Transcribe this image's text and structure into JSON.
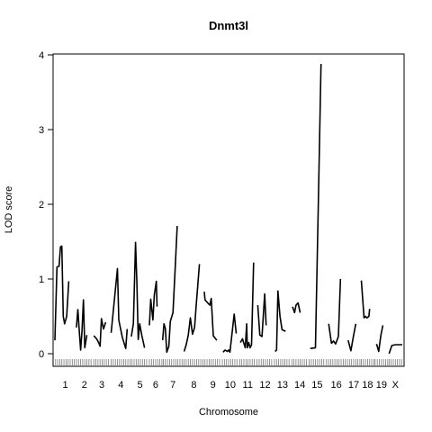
{
  "chart_data": {
    "type": "line",
    "title": "Dnmt3l",
    "xlabel": "Chromosome",
    "ylabel": "LOD score",
    "ylim": [
      0,
      4
    ],
    "yticks": [
      0,
      1,
      2,
      3,
      4
    ],
    "grid": false,
    "line_color": "#000000",
    "chromosomes": [
      {
        "label": "1",
        "span": [
          0.0,
          0.06
        ],
        "markers": [
          0.002,
          0.008,
          0.014,
          0.02,
          0.026,
          0.032,
          0.038,
          0.044,
          0.05,
          0.056
        ],
        "points": [
          [
            0.0,
            0.18
          ],
          [
            0.006,
            1.16
          ],
          [
            0.012,
            1.17
          ],
          [
            0.016,
            1.43
          ],
          [
            0.02,
            1.44
          ],
          [
            0.024,
            0.5
          ],
          [
            0.028,
            0.4
          ],
          [
            0.034,
            0.5
          ],
          [
            0.04,
            0.97
          ]
        ]
      },
      {
        "label": "2",
        "span": [
          0.06,
          0.11
        ],
        "markers": [
          0.062,
          0.068,
          0.074,
          0.08,
          0.086,
          0.092,
          0.098,
          0.104
        ],
        "points": [
          [
            0.062,
            0.35
          ],
          [
            0.066,
            0.59
          ],
          [
            0.07,
            0.32
          ],
          [
            0.074,
            0.05
          ],
          [
            0.078,
            0.3
          ],
          [
            0.082,
            0.72
          ],
          [
            0.086,
            0.08
          ],
          [
            0.092,
            0.25
          ]
        ]
      },
      {
        "label": "3",
        "span": [
          0.11,
          0.16
        ],
        "markers": [
          0.112,
          0.118,
          0.124,
          0.13,
          0.136,
          0.142,
          0.148,
          0.154
        ],
        "points": [
          [
            0.112,
            0.24
          ],
          [
            0.12,
            0.2
          ],
          [
            0.126,
            0.15
          ],
          [
            0.13,
            0.1
          ],
          [
            0.134,
            0.47
          ],
          [
            0.14,
            0.33
          ],
          [
            0.146,
            0.42
          ]
        ]
      },
      {
        "label": "4",
        "span": [
          0.16,
          0.22
        ],
        "markers": [
          0.162,
          0.168,
          0.174,
          0.18,
          0.186,
          0.192,
          0.198,
          0.204,
          0.21,
          0.216
        ],
        "points": [
          [
            0.162,
            0.28
          ],
          [
            0.18,
            1.14
          ],
          [
            0.184,
            0.45
          ],
          [
            0.194,
            0.22
          ],
          [
            0.204,
            0.07
          ],
          [
            0.208,
            0.33
          ]
        ]
      },
      {
        "label": "5",
        "span": [
          0.22,
          0.27
        ],
        "markers": [
          0.222,
          0.228,
          0.234,
          0.24,
          0.246,
          0.252,
          0.258,
          0.264
        ],
        "points": [
          [
            0.22,
            0.23
          ],
          [
            0.226,
            0.4
          ],
          [
            0.232,
            1.49
          ],
          [
            0.236,
            0.95
          ],
          [
            0.24,
            0.19
          ],
          [
            0.244,
            0.4
          ],
          [
            0.25,
            0.25
          ],
          [
            0.258,
            0.08
          ]
        ]
      },
      {
        "label": "6",
        "span": [
          0.27,
          0.31
        ],
        "markers": [
          0.272,
          0.278,
          0.284,
          0.29,
          0.296,
          0.302,
          0.308
        ],
        "points": [
          [
            0.272,
            0.38
          ],
          [
            0.276,
            0.73
          ],
          [
            0.282,
            0.45
          ],
          [
            0.286,
            0.78
          ],
          [
            0.292,
            0.97
          ],
          [
            0.294,
            0.63
          ]
        ]
      },
      {
        "label": "7",
        "span": [
          0.31,
          0.37
        ],
        "markers": [
          0.312,
          0.318,
          0.324,
          0.33,
          0.336,
          0.342,
          0.348,
          0.354,
          0.36,
          0.366
        ],
        "points": [
          [
            0.31,
            0.18
          ],
          [
            0.314,
            0.4
          ],
          [
            0.318,
            0.34
          ],
          [
            0.322,
            0.02
          ],
          [
            0.328,
            0.1
          ],
          [
            0.332,
            0.43
          ],
          [
            0.34,
            0.55
          ],
          [
            0.346,
            1.13
          ],
          [
            0.352,
            1.71
          ]
        ]
      },
      {
        "label": "8",
        "span": [
          0.37,
          0.43
        ],
        "markers": [
          0.372,
          0.378,
          0.384,
          0.39,
          0.396,
          0.402,
          0.408,
          0.414,
          0.42,
          0.426
        ],
        "points": [
          [
            0.372,
            0.03
          ],
          [
            0.378,
            0.12
          ],
          [
            0.384,
            0.25
          ],
          [
            0.39,
            0.48
          ],
          [
            0.396,
            0.26
          ],
          [
            0.402,
            0.35
          ],
          [
            0.406,
            0.6
          ],
          [
            0.416,
            1.2
          ]
        ]
      },
      {
        "label": "9",
        "span": [
          0.43,
          0.48
        ],
        "markers": [
          0.432,
          0.438,
          0.444,
          0.45,
          0.456,
          0.462,
          0.468,
          0.474
        ],
        "points": [
          [
            0.43,
            0.83
          ],
          [
            0.432,
            0.72
          ],
          [
            0.44,
            0.68
          ],
          [
            0.446,
            0.65
          ],
          [
            0.45,
            0.74
          ],
          [
            0.456,
            0.24
          ],
          [
            0.466,
            0.18
          ]
        ]
      },
      {
        "label": "10",
        "span": [
          0.48,
          0.53
        ],
        "markers": [
          0.482,
          0.488,
          0.494,
          0.5,
          0.506,
          0.512,
          0.518,
          0.524
        ],
        "points": [
          [
            0.484,
            0.02
          ],
          [
            0.49,
            0.05
          ],
          [
            0.496,
            0.03
          ],
          [
            0.5,
            0.05
          ],
          [
            0.504,
            0.02
          ],
          [
            0.516,
            0.53
          ],
          [
            0.522,
            0.27
          ]
        ]
      },
      {
        "label": "11",
        "span": [
          0.53,
          0.58
        ],
        "markers": [
          0.532,
          0.538,
          0.544,
          0.55,
          0.556,
          0.562,
          0.568,
          0.574
        ],
        "points": [
          [
            0.534,
            0.15
          ],
          [
            0.54,
            0.2
          ],
          [
            0.548,
            0.08
          ],
          [
            0.552,
            0.4
          ],
          [
            0.554,
            0.08
          ],
          [
            0.558,
            0.15
          ],
          [
            0.562,
            0.08
          ],
          [
            0.566,
            0.12
          ],
          [
            0.572,
            1.22
          ]
        ]
      },
      {
        "label": "12",
        "span": [
          0.58,
          0.63
        ],
        "markers": [
          0.582,
          0.588,
          0.594,
          0.6,
          0.606,
          0.612,
          0.618,
          0.624
        ],
        "points": [
          [
            0.584,
            0.65
          ],
          [
            0.59,
            0.25
          ],
          [
            0.596,
            0.23
          ],
          [
            0.604,
            0.8
          ],
          [
            0.608,
            0.38
          ]
        ]
      },
      {
        "label": "13",
        "span": [
          0.63,
          0.68
        ],
        "markers": [
          0.632,
          0.638,
          0.644,
          0.65,
          0.656,
          0.662,
          0.668,
          0.674
        ],
        "points": [
          [
            0.634,
            0.03
          ],
          [
            0.638,
            0.05
          ],
          [
            0.642,
            0.84
          ],
          [
            0.648,
            0.5
          ],
          [
            0.654,
            0.32
          ],
          [
            0.664,
            0.3
          ]
        ]
      },
      {
        "label": "14",
        "span": [
          0.68,
          0.73
        ],
        "markers": [
          0.682,
          0.688,
          0.694,
          0.7,
          0.706,
          0.712,
          0.718,
          0.724
        ],
        "points": [
          [
            0.684,
            0.63
          ],
          [
            0.69,
            0.55
          ],
          [
            0.694,
            0.65
          ],
          [
            0.7,
            0.68
          ],
          [
            0.706,
            0.55
          ]
        ]
      },
      {
        "label": "15",
        "span": [
          0.73,
          0.78
        ],
        "markers": [
          0.732,
          0.738,
          0.744,
          0.75,
          0.756,
          0.762,
          0.768,
          0.774
        ],
        "points": [
          [
            0.735,
            0.07
          ],
          [
            0.75,
            0.08
          ],
          [
            0.758,
            1.95
          ],
          [
            0.766,
            3.88
          ]
        ]
      },
      {
        "label": "16",
        "span": [
          0.78,
          0.84
        ],
        "markers": [
          0.782,
          0.788,
          0.794,
          0.8,
          0.806,
          0.812,
          0.818,
          0.824,
          0.83,
          0.836
        ],
        "points": [
          [
            0.788,
            0.4
          ],
          [
            0.796,
            0.14
          ],
          [
            0.802,
            0.17
          ],
          [
            0.808,
            0.13
          ],
          [
            0.816,
            0.23
          ],
          [
            0.822,
            1.0
          ]
        ]
      },
      {
        "label": "17",
        "span": [
          0.84,
          0.88
        ],
        "markers": [
          0.842,
          0.848,
          0.854,
          0.86,
          0.866,
          0.872,
          0.878
        ],
        "points": [
          [
            0.844,
            0.18
          ],
          [
            0.852,
            0.04
          ],
          [
            0.858,
            0.2
          ],
          [
            0.866,
            0.4
          ]
        ]
      },
      {
        "label": "18",
        "span": [
          0.88,
          0.92
        ],
        "markers": [
          0.882,
          0.888,
          0.894,
          0.9,
          0.906,
          0.912,
          0.918
        ],
        "points": [
          [
            0.882,
            0.98
          ],
          [
            0.89,
            0.48
          ],
          [
            0.894,
            0.5
          ],
          [
            0.898,
            0.48
          ],
          [
            0.904,
            0.5
          ],
          [
            0.906,
            0.6
          ]
        ]
      },
      {
        "label": "19",
        "span": [
          0.92,
          0.96
        ],
        "markers": [
          0.922,
          0.928,
          0.934,
          0.94,
          0.946,
          0.952,
          0.958
        ],
        "points": [
          [
            0.926,
            0.13
          ],
          [
            0.932,
            0.03
          ],
          [
            0.938,
            0.24
          ],
          [
            0.944,
            0.38
          ]
        ]
      },
      {
        "label": "X",
        "span": [
          0.96,
          1.0
        ],
        "markers": [
          0.962,
          0.968,
          0.974,
          0.98,
          0.986,
          0.992,
          0.998
        ],
        "points": [
          [
            0.962,
            0.0
          ],
          [
            0.97,
            0.11
          ],
          [
            0.98,
            0.12
          ],
          [
            0.994,
            0.12
          ],
          [
            1.0,
            0.12
          ]
        ]
      }
    ]
  }
}
